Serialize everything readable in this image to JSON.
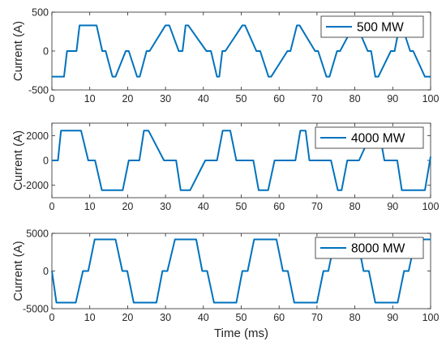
{
  "figure": {
    "xlabel": "Time (ms)"
  },
  "chart_data": [
    {
      "type": "line",
      "ylabel": "Current (A)",
      "xlim": [
        0,
        100
      ],
      "ylim": [
        -500,
        500
      ],
      "xticks": [
        "0",
        "10",
        "20",
        "30",
        "40",
        "50",
        "60",
        "70",
        "80",
        "90",
        "100"
      ],
      "yticks": [
        "500",
        "0",
        "-500"
      ],
      "ytick_values": [
        500,
        0,
        -500
      ],
      "legend_position": "top-right",
      "series": [
        {
          "name": "500 MW",
          "color": "#0072BD",
          "x": [
            0,
            3.2,
            4.0,
            6.5,
            7.3,
            11.8,
            13.3,
            14.2,
            16.0,
            16.8,
            19.5,
            20.3,
            22.5,
            23.2,
            25.0,
            25.8,
            30.0,
            31.0,
            33.5,
            34.5,
            35.3,
            36.0,
            40.8,
            42.0,
            43.6,
            44.2,
            45.0,
            45.8,
            50.3,
            51.0,
            54.0,
            55.0,
            57.2,
            57.9,
            62.2,
            63.0,
            64.7,
            65.4,
            69.5,
            70.3,
            72.5,
            73.3,
            75.3,
            76.1,
            79.7,
            80.5,
            83.4,
            84.3,
            85.4,
            86.2,
            89.5,
            90.5,
            91.8,
            92.4,
            94.6,
            95.4,
            98.5,
            99.4,
            100
          ],
          "y": [
            -330,
            -330,
            0,
            0,
            330,
            330,
            0,
            0,
            -330,
            -330,
            0,
            0,
            -330,
            -330,
            0,
            0,
            330,
            330,
            0,
            0,
            330,
            330,
            0,
            0,
            -330,
            -330,
            0,
            0,
            330,
            330,
            0,
            0,
            -330,
            -330,
            0,
            0,
            330,
            330,
            0,
            0,
            -330,
            -330,
            0,
            0,
            330,
            330,
            0,
            0,
            -330,
            -330,
            0,
            0,
            330,
            330,
            0,
            0,
            -330,
            -330,
            -330
          ]
        }
      ]
    },
    {
      "type": "line",
      "ylabel": "Current (A)",
      "xlim": [
        0,
        100
      ],
      "ylim": [
        -3000,
        3000
      ],
      "xticks": [
        "0",
        "10",
        "20",
        "30",
        "40",
        "50",
        "60",
        "70",
        "80",
        "90",
        "100"
      ],
      "yticks": [
        "2000",
        "0",
        "-2000"
      ],
      "ytick_values": [
        2000,
        0,
        -2000
      ],
      "legend_position": "top-right",
      "series": [
        {
          "name": "4000 MW",
          "color": "#0072BD",
          "x": [
            0,
            1.6,
            2.4,
            7.7,
            9.6,
            10.9,
            11.4,
            13.2,
            18.7,
            20.3,
            21.8,
            23.1,
            24.3,
            25.5,
            29.6,
            31.3,
            32.8,
            34.0,
            34.9,
            36.5,
            40.5,
            42.2,
            43.6,
            45.1,
            47.1,
            48.7,
            51.6,
            53.2,
            54.6,
            56.0,
            57.1,
            58.8,
            62.7,
            64.3,
            65.6,
            67.0,
            68.0,
            69.8,
            73.7,
            75.5,
            76.5,
            78.0,
            79.5,
            81.1,
            84.7,
            86.4,
            87.8,
            88.8,
            91.2,
            92.4,
            96.6,
            98.5,
            100
          ],
          "y": [
            0,
            0,
            2400,
            2400,
            0,
            0,
            0,
            -2400,
            -2400,
            0,
            0,
            0,
            2400,
            2400,
            0,
            0,
            0,
            -2400,
            -2400,
            -2400,
            0,
            0,
            0,
            2400,
            2400,
            0,
            0,
            0,
            -2400,
            -2400,
            -2400,
            0,
            0,
            0,
            2400,
            2400,
            0,
            0,
            0,
            -2400,
            -2400,
            0,
            0,
            0,
            2400,
            2400,
            0,
            0,
            0,
            -2400,
            -2400,
            -2400,
            300
          ]
        }
      ]
    },
    {
      "type": "line",
      "ylabel": "Current (A)",
      "xlim": [
        0,
        100
      ],
      "ylim": [
        -5000,
        5000
      ],
      "xticks": [
        "0",
        "10",
        "20",
        "30",
        "40",
        "50",
        "60",
        "70",
        "80",
        "90",
        "100"
      ],
      "yticks": [
        "5000",
        "0",
        "-5000"
      ],
      "ytick_values": [
        5000,
        0,
        -5000
      ],
      "legend_position": "top-right",
      "series": [
        {
          "name": "8000 MW",
          "color": "#0072BD",
          "x": [
            0,
            1.2,
            6.3,
            8.2,
            9.6,
            11.3,
            16.8,
            18.6,
            19.9,
            21.6,
            27.6,
            29.2,
            30.5,
            32.5,
            38.1,
            39.7,
            41.0,
            42.8,
            48.7,
            50.3,
            51.7,
            53.4,
            59.3,
            61.0,
            62.3,
            64.0,
            70.0,
            71.7,
            73.0,
            74.7,
            80.7,
            82.3,
            83.7,
            85.4,
            91.3,
            93.0,
            94.2,
            96.0,
            100
          ],
          "y": [
            0,
            -4200,
            -4200,
            0,
            0,
            4200,
            4200,
            0,
            0,
            -4200,
            -4200,
            0,
            0,
            4200,
            4200,
            0,
            0,
            -4200,
            -4200,
            0,
            0,
            4200,
            4200,
            0,
            0,
            -4200,
            -4200,
            0,
            0,
            4200,
            4200,
            0,
            0,
            -4200,
            -4200,
            0,
            0,
            4200,
            4200
          ]
        }
      ]
    }
  ]
}
